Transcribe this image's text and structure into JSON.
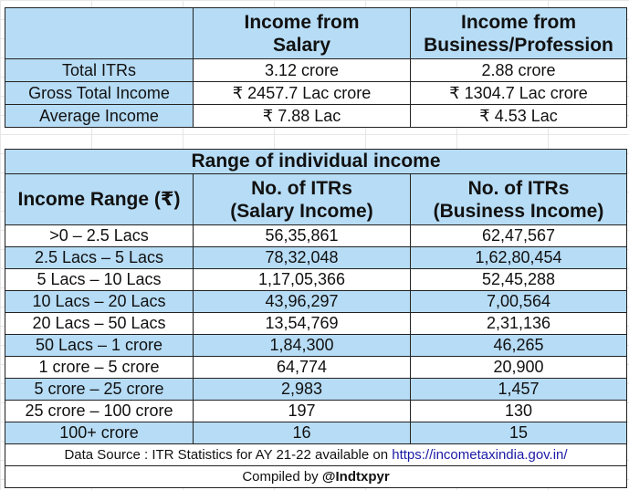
{
  "summary": {
    "headers": [
      "",
      "Income from\nSalary",
      "Income from\nBusiness/Profession"
    ],
    "header_salary_l1": "Income from",
    "header_salary_l2": "Salary",
    "header_business_l1": "Income from",
    "header_business_l2": "Business/Profession",
    "rows": [
      {
        "label": "Total ITRs",
        "salary": "3.12 crore",
        "business": "2.88 crore"
      },
      {
        "label": "Gross Total Income",
        "salary": "₹ 2457.7 Lac crore",
        "business": "₹ 1304.7 Lac crore"
      },
      {
        "label": "Average Income",
        "salary": "₹ 7.88 Lac",
        "business": "₹ 4.53 Lac"
      }
    ]
  },
  "range": {
    "title": "Range of individual income",
    "col_range": "Income Range (₹)",
    "col_salary_l1": "No. of ITRs",
    "col_salary_l2": "(Salary Income)",
    "col_business_l1": "No. of ITRs",
    "col_business_l2": "(Business Income)",
    "rows": [
      {
        "range": ">0 – 2.5 Lacs",
        "salary": "56,35,861",
        "business": "62,47,567"
      },
      {
        "range": "2.5 Lacs – 5 Lacs",
        "salary": "78,32,048",
        "business": "1,62,80,454"
      },
      {
        "range": "5 Lacs – 10 Lacs",
        "salary": "1,17,05,366",
        "business": "52,45,288"
      },
      {
        "range": "10 Lacs – 20 Lacs",
        "salary": "43,96,297",
        "business": "7,00,564"
      },
      {
        "range": "20 Lacs – 50 Lacs",
        "salary": "13,54,769",
        "business": "2,31,136"
      },
      {
        "range": "50 Lacs – 1 crore",
        "salary": "1,84,300",
        "business": "46,265"
      },
      {
        "range": "1 crore – 5 crore",
        "salary": "64,774",
        "business": "20,900"
      },
      {
        "range": "5 crore – 25 crore",
        "salary": "2,983",
        "business": "1,457"
      },
      {
        "range": "25 crore – 100 crore",
        "salary": "197",
        "business": "130"
      },
      {
        "range": "100+ crore",
        "salary": "16",
        "business": "15"
      }
    ],
    "source_prefix": "Data Source : ITR Statistics for AY 21-22 available on ",
    "source_link": "https://incometaxindia.gov.in/",
    "compiled_prefix": "Compiled by ",
    "compiled_handle": "@Indtxpyr"
  },
  "colors": {
    "header_fill": "#b7dcf5",
    "alt_row_fill": "#b7dcf5",
    "border": "#222222",
    "link": "#1a1aa6"
  }
}
